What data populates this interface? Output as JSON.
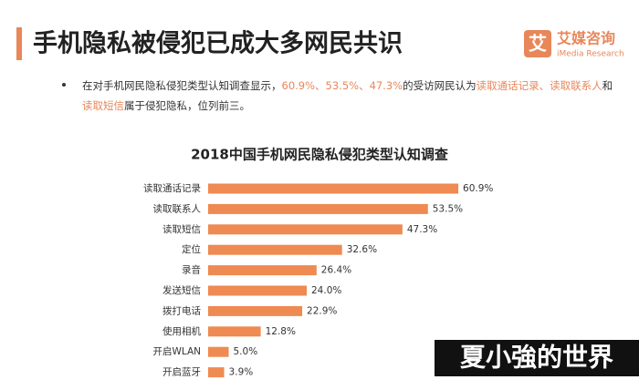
{
  "header": {
    "title": "手机隐私被侵犯已成大多网民共识",
    "logo_mark": "艾",
    "logo_name": "艾媒咨询",
    "logo_sub": "iMedia Research"
  },
  "bullet": {
    "line1": [
      "在对手机网民隐私侵犯类型认知调查显示，",
      "60.9%、53.5%、47.3%",
      "的受访网民认为",
      "读取通话记录、读取联系人",
      "和"
    ],
    "line2": [
      "读取短信",
      "属于侵犯隐私，位列前三。"
    ]
  },
  "chart_data": {
    "type": "bar",
    "orientation": "horizontal",
    "title": "2018中国手机网民隐私侵犯类型认知调查",
    "categories": [
      "读取通话记录",
      "读取联系人",
      "读取短信",
      "定位",
      "录音",
      "发送短信",
      "拨打电话",
      "使用相机",
      "开启WLAN",
      "开启蓝牙"
    ],
    "values": [
      60.9,
      53.5,
      47.3,
      32.6,
      26.4,
      24.0,
      22.9,
      12.8,
      5.0,
      3.9
    ],
    "value_labels": [
      "60.9%",
      "53.5%",
      "47.3%",
      "32.6%",
      "26.4%",
      "24.0%",
      "22.9%",
      "12.8%",
      "5.0%",
      "3.9%"
    ],
    "color": "#ee8a52"
  },
  "watermark": "夏小強的世界"
}
